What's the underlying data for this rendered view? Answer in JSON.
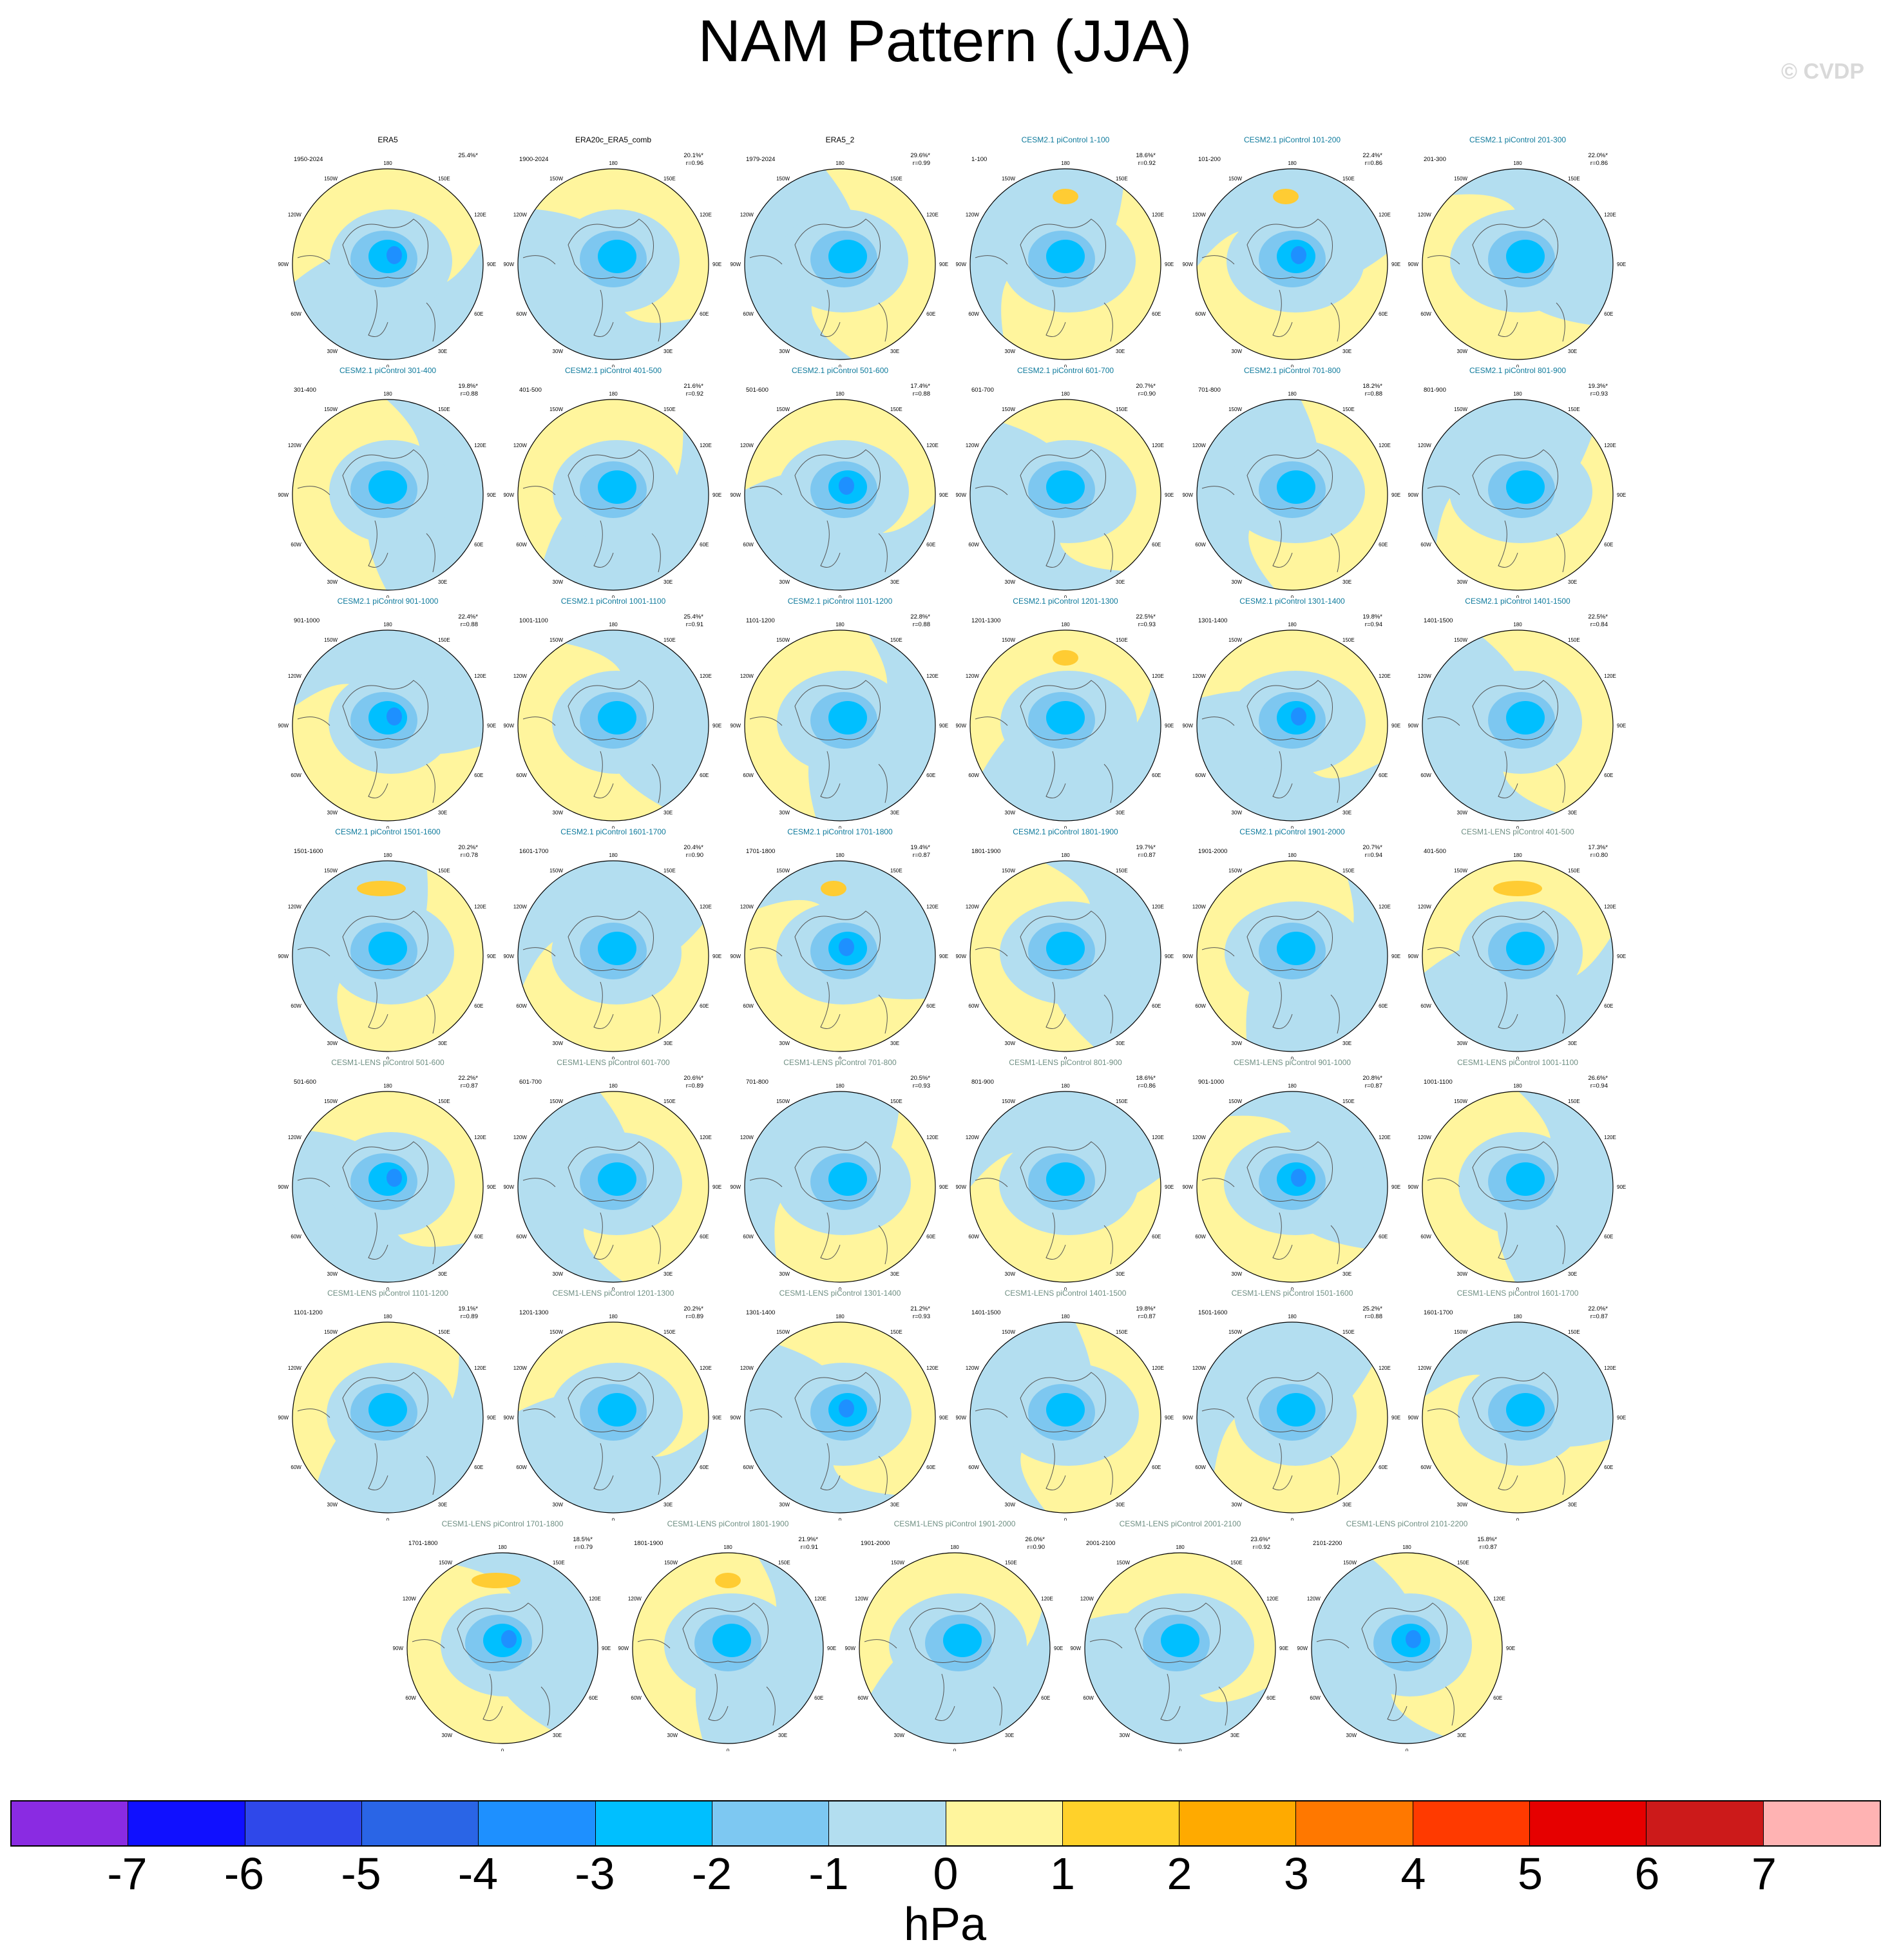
{
  "title": "NAM Pattern (JJA)",
  "watermark": "© CVDP",
  "colors": {
    "ocean_light_blue": "#b3def0",
    "land_yellow": "#fff59d",
    "blue_1": "#7dc7f0",
    "blue_2": "#00bfff",
    "blue_3": "#1e90ff",
    "orange_1": "#ffcc33",
    "title_teal": "#0e7a9c",
    "title_grey": "#6f8f83"
  },
  "panels": [
    {
      "title": "ERA5",
      "period": "1950-2024",
      "pct": "25.4%*",
      "r": "",
      "style": "obs"
    },
    {
      "title": "ERA20c_ERA5_comb",
      "period": "1900-2024",
      "pct": "20.1%*",
      "r": "r=0.96",
      "style": "obs"
    },
    {
      "title": "ERA5_2",
      "period": "1979-2024",
      "pct": "29.6%*",
      "r": "r=0.99",
      "style": "obs"
    },
    {
      "title": "CESM2.1 piControl 1-100",
      "period": "1-100",
      "pct": "18.6%*",
      "r": "r=0.92",
      "style": "cesm2"
    },
    {
      "title": "CESM2.1 piControl 101-200",
      "period": "101-200",
      "pct": "22.4%*",
      "r": "r=0.86",
      "style": "cesm2"
    },
    {
      "title": "CESM2.1 piControl 201-300",
      "period": "201-300",
      "pct": "22.0%*",
      "r": "r=0.86",
      "style": "cesm2"
    },
    {
      "title": "CESM2.1 piControl 301-400",
      "period": "301-400",
      "pct": "19.8%*",
      "r": "r=0.88",
      "style": "cesm2"
    },
    {
      "title": "CESM2.1 piControl 401-500",
      "period": "401-500",
      "pct": "21.6%*",
      "r": "r=0.92",
      "style": "cesm2"
    },
    {
      "title": "CESM2.1 piControl 501-600",
      "period": "501-600",
      "pct": "17.4%*",
      "r": "r=0.88",
      "style": "cesm2"
    },
    {
      "title": "CESM2.1 piControl 601-700",
      "period": "601-700",
      "pct": "20.7%*",
      "r": "r=0.90",
      "style": "cesm2"
    },
    {
      "title": "CESM2.1 piControl 701-800",
      "period": "701-800",
      "pct": "18.2%*",
      "r": "r=0.88",
      "style": "cesm2"
    },
    {
      "title": "CESM2.1 piControl 801-900",
      "period": "801-900",
      "pct": "19.3%*",
      "r": "r=0.93",
      "style": "cesm2"
    },
    {
      "title": "CESM2.1 piControl 901-1000",
      "period": "901-1000",
      "pct": "22.4%*",
      "r": "r=0.88",
      "style": "cesm2"
    },
    {
      "title": "CESM2.1 piControl 1001-1100",
      "period": "1001-1100",
      "pct": "25.4%*",
      "r": "r=0.91",
      "style": "cesm2"
    },
    {
      "title": "CESM2.1 piControl 1101-1200",
      "period": "1101-1200",
      "pct": "22.8%*",
      "r": "r=0.88",
      "style": "cesm2"
    },
    {
      "title": "CESM2.1 piControl 1201-1300",
      "period": "1201-1300",
      "pct": "22.5%*",
      "r": "r=0.93",
      "style": "cesm2"
    },
    {
      "title": "CESM2.1 piControl 1301-1400",
      "period": "1301-1400",
      "pct": "19.8%*",
      "r": "r=0.94",
      "style": "cesm2"
    },
    {
      "title": "CESM2.1 piControl 1401-1500",
      "period": "1401-1500",
      "pct": "22.5%*",
      "r": "r=0.84",
      "style": "cesm2"
    },
    {
      "title": "CESM2.1 piControl 1501-1600",
      "period": "1501-1600",
      "pct": "20.2%*",
      "r": "r=0.78",
      "style": "cesm2"
    },
    {
      "title": "CESM2.1 piControl 1601-1700",
      "period": "1601-1700",
      "pct": "20.4%*",
      "r": "r=0.90",
      "style": "cesm2"
    },
    {
      "title": "CESM2.1 piControl 1701-1800",
      "period": "1701-1800",
      "pct": "19.4%*",
      "r": "r=0.87",
      "style": "cesm2"
    },
    {
      "title": "CESM2.1 piControl 1801-1900",
      "period": "1801-1900",
      "pct": "19.7%*",
      "r": "r=0.87",
      "style": "cesm2"
    },
    {
      "title": "CESM2.1 piControl 1901-2000",
      "period": "1901-2000",
      "pct": "20.7%*",
      "r": "r=0.94",
      "style": "cesm2"
    },
    {
      "title": "CESM1-LENS piControl 401-500",
      "period": "401-500",
      "pct": "17.3%*",
      "r": "r=0.80",
      "style": "cesm1"
    },
    {
      "title": "CESM1-LENS piControl 501-600",
      "period": "501-600",
      "pct": "22.2%*",
      "r": "r=0.87",
      "style": "cesm1"
    },
    {
      "title": "CESM1-LENS piControl 601-700",
      "period": "601-700",
      "pct": "20.6%*",
      "r": "r=0.89",
      "style": "cesm1"
    },
    {
      "title": "CESM1-LENS piControl 701-800",
      "period": "701-800",
      "pct": "20.5%*",
      "r": "r=0.93",
      "style": "cesm1"
    },
    {
      "title": "CESM1-LENS piControl 801-900",
      "period": "801-900",
      "pct": "18.6%*",
      "r": "r=0.86",
      "style": "cesm1"
    },
    {
      "title": "CESM1-LENS piControl 901-1000",
      "period": "901-1000",
      "pct": "20.8%*",
      "r": "r=0.87",
      "style": "cesm1"
    },
    {
      "title": "CESM1-LENS piControl 1001-1100",
      "period": "1001-1100",
      "pct": "26.6%*",
      "r": "r=0.94",
      "style": "cesm1"
    },
    {
      "title": "CESM1-LENS piControl 1101-1200",
      "period": "1101-1200",
      "pct": "19.1%*",
      "r": "r=0.89",
      "style": "cesm1"
    },
    {
      "title": "CESM1-LENS piControl 1201-1300",
      "period": "1201-1300",
      "pct": "20.2%*",
      "r": "r=0.89",
      "style": "cesm1"
    },
    {
      "title": "CESM1-LENS piControl 1301-1400",
      "period": "1301-1400",
      "pct": "21.2%*",
      "r": "r=0.93",
      "style": "cesm1"
    },
    {
      "title": "CESM1-LENS piControl 1401-1500",
      "period": "1401-1500",
      "pct": "19.8%*",
      "r": "r=0.87",
      "style": "cesm1"
    },
    {
      "title": "CESM1-LENS piControl 1501-1600",
      "period": "1501-1600",
      "pct": "25.2%*",
      "r": "r=0.88",
      "style": "cesm1"
    },
    {
      "title": "CESM1-LENS piControl 1601-1700",
      "period": "1601-1700",
      "pct": "22.0%*",
      "r": "r=0.87",
      "style": "cesm1"
    },
    {
      "title": "CESM1-LENS piControl 1701-1800",
      "period": "1701-1800",
      "pct": "18.5%*",
      "r": "r=0.79",
      "style": "cesm1"
    },
    {
      "title": "CESM1-LENS piControl 1801-1900",
      "period": "1801-1900",
      "pct": "21.9%*",
      "r": "r=0.91",
      "style": "cesm1"
    },
    {
      "title": "CESM1-LENS piControl 1901-2000",
      "period": "1901-2000",
      "pct": "26.0%*",
      "r": "r=0.90",
      "style": "cesm1"
    },
    {
      "title": "CESM1-LENS piControl 2001-2100",
      "period": "2001-2100",
      "pct": "23.6%*",
      "r": "r=0.92",
      "style": "cesm1"
    },
    {
      "title": "CESM1-LENS piControl 2101-2200",
      "period": "2101-2200",
      "pct": "15.8%*",
      "r": "r=0.87",
      "style": "cesm1"
    }
  ],
  "map_labels": {
    "top": "180",
    "bottom": "0",
    "left": "90W",
    "right": "90E",
    "upper_left": "150W",
    "upper_right": "150E",
    "left_upper": "120W",
    "right_upper": "120E",
    "left_lower": "60W",
    "right_lower": "60E",
    "lower_left": "30W",
    "lower_right": "30E"
  },
  "colorbar": {
    "colors": [
      "#8a2be2",
      "#1010ff",
      "#2f48ea",
      "#2a65e6",
      "#1e90ff",
      "#00bfff",
      "#7dc8f2",
      "#b3def0",
      "#fff59d",
      "#ffd12a",
      "#ffaa00",
      "#ff7800",
      "#ff3a00",
      "#e60000",
      "#cc1a1a",
      "#ffb3b3"
    ],
    "labels": [
      "-7",
      "-6",
      "-5",
      "-4",
      "-3",
      "-2",
      "-1",
      "0",
      "1",
      "2",
      "3",
      "4",
      "5",
      "6",
      "7"
    ],
    "units": "hPa"
  }
}
